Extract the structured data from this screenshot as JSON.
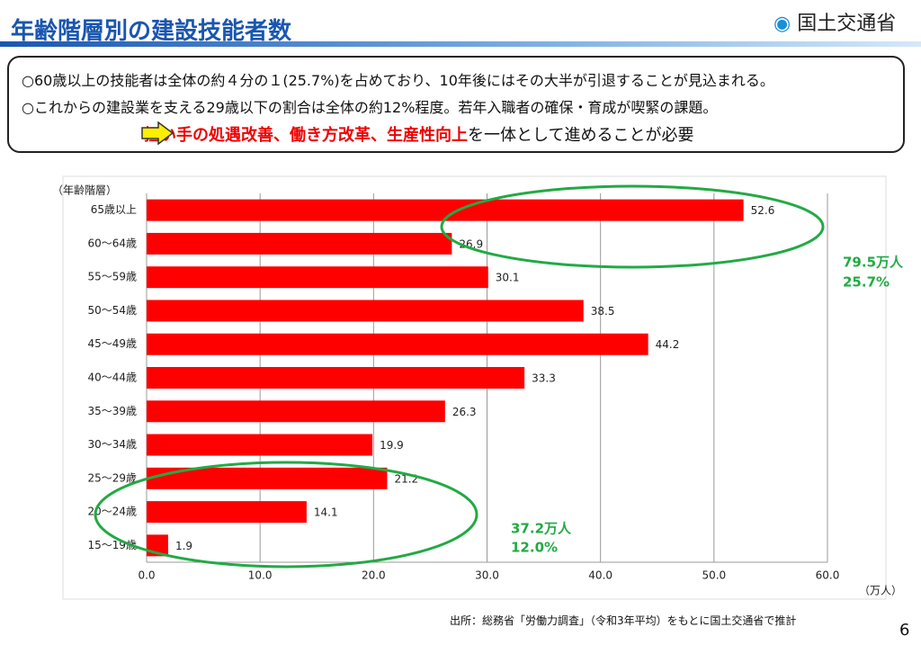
{
  "header": {
    "title": "年齢階層別の建設技能者数",
    "logo": "国土交通省"
  },
  "summary": {
    "line1": "○60歳以上の技能者は全体の約４分の１(25.7%)を占めており、10年後にはその大半が引退することが見込まれる。",
    "line2": "○これからの建設業を支える29歳以下の割合は全体の約12%程度。若年入職者の確保・育成が喫緊の課題。",
    "line3_emphasis": "担い手の処遇改善、働き方改革、生産性向上",
    "line3_rest": "を一体として進めることが必要"
  },
  "chart_data": {
    "type": "bar",
    "orientation": "horizontal",
    "y_axis_label": "（年齢階層）",
    "x_axis_label": "（万人）",
    "categories": [
      "65歳以上",
      "60～64歳",
      "55～59歳",
      "50～54歳",
      "45～49歳",
      "40～44歳",
      "35～39歳",
      "30～34歳",
      "25～29歳",
      "20～24歳",
      "15～19歳"
    ],
    "values": [
      52.6,
      26.9,
      30.1,
      38.5,
      44.2,
      33.3,
      26.3,
      19.9,
      21.2,
      14.1,
      1.9
    ],
    "color": "#ff0000",
    "xlim": [
      0,
      60
    ],
    "xticks": [
      {
        "value": 0,
        "label": "0.0"
      },
      {
        "value": 10,
        "label": "10.0"
      },
      {
        "value": 20,
        "label": "20.0"
      },
      {
        "value": 30,
        "label": "30.0"
      },
      {
        "value": 40,
        "label": "40.0"
      },
      {
        "value": 50,
        "label": "50.0"
      },
      {
        "value": 60,
        "label": "60.0"
      }
    ],
    "grid": true,
    "annotations": {
      "upper_total": "79.5万人",
      "upper_share": "25.7%",
      "lower_total": "37.2万人",
      "lower_share": "12.0%"
    }
  },
  "source": "出所：総務省「労働力調査」（令和3年平均）をもとに国土交通省で推計",
  "page_number": "6"
}
